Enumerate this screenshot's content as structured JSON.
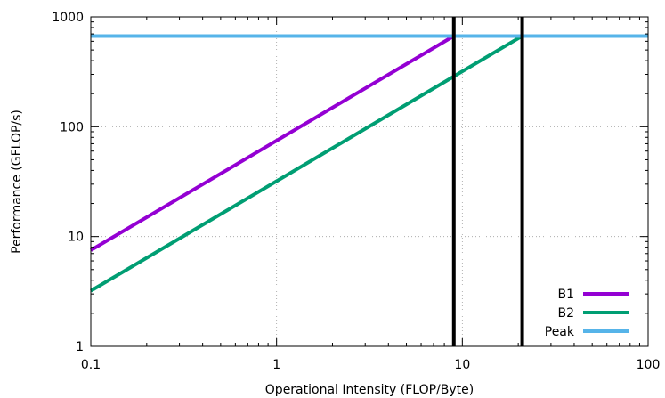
{
  "chart_data": {
    "type": "line",
    "title": "",
    "xlabel": "Operational Intensity (FLOP/Byte)",
    "ylabel": "Performance (GFLOP/s)",
    "xscale": "log",
    "yscale": "log",
    "xlim": [
      0.1,
      100
    ],
    "ylim": [
      1,
      1000
    ],
    "x_ticks": [
      0.1,
      1,
      10,
      100
    ],
    "x_tick_labels": [
      "0.1",
      "1",
      "10",
      "100"
    ],
    "y_ticks": [
      1,
      10,
      100,
      1000
    ],
    "y_tick_labels": [
      "1",
      "10",
      "100",
      "1000"
    ],
    "grid": true,
    "legend_position": "bottom-right",
    "series": [
      {
        "name": "B1",
        "color": "#9400d3",
        "x": [
          0.1,
          9.0
        ],
        "y": [
          7.5,
          670
        ]
      },
      {
        "name": "B2",
        "color": "#009e73",
        "x": [
          0.1,
          21.0
        ],
        "y": [
          3.2,
          670
        ]
      },
      {
        "name": "Peak",
        "color": "#56b4e9",
        "x": [
          0.1,
          100
        ],
        "y": [
          670,
          670
        ]
      }
    ],
    "vertical_lines": [
      {
        "x": 9.0,
        "color": "#000000"
      },
      {
        "x": 21.0,
        "color": "#000000"
      }
    ]
  }
}
